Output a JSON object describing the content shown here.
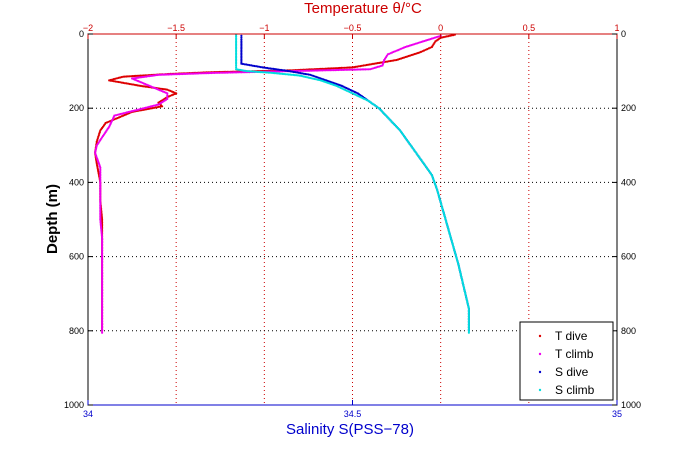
{
  "chart_data": {
    "type": "scatter",
    "title": "Temperature θ/°C",
    "xlabel": "Salinity S(PSS−78)",
    "ylabel": "Depth (m)",
    "x_bottom": {
      "label": "Salinity S(PSS−78)",
      "lim": [
        34,
        35
      ],
      "ticks": [
        "34",
        "34.5",
        "35"
      ],
      "tick_values": [
        34,
        34.5,
        35
      ],
      "color": "#0000cc"
    },
    "x_top": {
      "label": "Temperature θ/°C",
      "lim": [
        -2,
        1
      ],
      "ticks": [
        "−2",
        "−1.5",
        "−1",
        "−0.5",
        "0",
        "0.5",
        "1"
      ],
      "tick_values": [
        -2,
        -1.5,
        -1,
        -0.5,
        0,
        0.5,
        1
      ],
      "color": "#cc0000"
    },
    "y": {
      "lim": [
        0,
        1000
      ],
      "reversed": true,
      "ticks": [
        "0",
        "200",
        "400",
        "600",
        "800",
        "1000"
      ],
      "tick_values": [
        0,
        200,
        400,
        600,
        800,
        1000
      ]
    },
    "grid": true,
    "legend_position": "bottom-right",
    "series": [
      {
        "name": "T dive",
        "axis": "temperature",
        "color": "#dd0000",
        "points": [
          [
            0.08,
            2
          ],
          [
            0.0,
            10
          ],
          [
            -0.03,
            20
          ],
          [
            -0.05,
            35
          ],
          [
            -0.12,
            50
          ],
          [
            -0.25,
            70
          ],
          [
            -0.5,
            90
          ],
          [
            -0.85,
            98
          ],
          [
            -1.3,
            103
          ],
          [
            -1.55,
            108
          ],
          [
            -1.8,
            115
          ],
          [
            -1.88,
            125
          ],
          [
            -1.7,
            140
          ],
          [
            -1.55,
            150
          ],
          [
            -1.5,
            160
          ],
          [
            -1.55,
            170
          ],
          [
            -1.6,
            185
          ],
          [
            -1.58,
            195
          ],
          [
            -1.75,
            210
          ],
          [
            -1.85,
            230
          ],
          [
            -1.9,
            240
          ],
          [
            -1.93,
            260
          ],
          [
            -1.95,
            290
          ],
          [
            -1.96,
            320
          ],
          [
            -1.95,
            350
          ],
          [
            -1.93,
            400
          ],
          [
            -1.93,
            450
          ],
          [
            -1.92,
            500
          ],
          [
            -1.92,
            550
          ],
          [
            -1.92,
            600
          ],
          [
            -1.92,
            650
          ],
          [
            -1.92,
            700
          ],
          [
            -1.92,
            750
          ],
          [
            -1.92,
            800
          ]
        ]
      },
      {
        "name": "T climb",
        "axis": "temperature",
        "color": "#ee00ee",
        "points": [
          [
            0.0,
            5
          ],
          [
            -0.1,
            20
          ],
          [
            -0.2,
            35
          ],
          [
            -0.3,
            55
          ],
          [
            -0.32,
            70
          ],
          [
            -0.33,
            85
          ],
          [
            -0.4,
            95
          ],
          [
            -0.85,
            100
          ],
          [
            -1.3,
            105
          ],
          [
            -1.6,
            110
          ],
          [
            -1.75,
            120
          ],
          [
            -1.65,
            140
          ],
          [
            -1.55,
            160
          ],
          [
            -1.55,
            175
          ],
          [
            -1.6,
            190
          ],
          [
            -1.85,
            220
          ],
          [
            -1.88,
            250
          ],
          [
            -1.95,
            300
          ],
          [
            -1.96,
            320
          ],
          [
            -1.93,
            360
          ],
          [
            -1.93,
            400
          ],
          [
            -1.93,
            450
          ],
          [
            -1.93,
            500
          ],
          [
            -1.92,
            550
          ],
          [
            -1.92,
            600
          ],
          [
            -1.92,
            650
          ],
          [
            -1.92,
            700
          ],
          [
            -1.92,
            750
          ],
          [
            -1.92,
            800
          ],
          [
            -1.92,
            805
          ]
        ]
      },
      {
        "name": "S dive",
        "axis": "salinity",
        "color": "#0000cc",
        "points": [
          [
            34.29,
            5
          ],
          [
            34.29,
            20
          ],
          [
            34.29,
            40
          ],
          [
            34.29,
            60
          ],
          [
            34.29,
            80
          ],
          [
            34.33,
            90
          ],
          [
            34.38,
            100
          ],
          [
            34.42,
            110
          ],
          [
            34.45,
            125
          ],
          [
            34.48,
            140
          ],
          [
            34.51,
            160
          ],
          [
            34.53,
            180
          ],
          [
            34.55,
            200
          ],
          [
            34.57,
            230
          ],
          [
            34.59,
            260
          ],
          [
            34.61,
            300
          ],
          [
            34.63,
            340
          ],
          [
            34.65,
            380
          ],
          [
            34.66,
            420
          ],
          [
            34.67,
            470
          ],
          [
            34.68,
            520
          ],
          [
            34.69,
            570
          ],
          [
            34.7,
            620
          ],
          [
            34.71,
            680
          ],
          [
            34.72,
            740
          ],
          [
            34.72,
            800
          ]
        ]
      },
      {
        "name": "S climb",
        "axis": "salinity",
        "color": "#00dddd",
        "points": [
          [
            34.28,
            2
          ],
          [
            34.28,
            20
          ],
          [
            34.28,
            40
          ],
          [
            34.28,
            60
          ],
          [
            34.28,
            80
          ],
          [
            34.28,
            95
          ],
          [
            34.3,
            100
          ],
          [
            34.35,
            105
          ],
          [
            34.4,
            112
          ],
          [
            34.44,
            125
          ],
          [
            34.47,
            140
          ],
          [
            34.5,
            160
          ],
          [
            34.53,
            180
          ],
          [
            34.55,
            200
          ],
          [
            34.57,
            230
          ],
          [
            34.59,
            260
          ],
          [
            34.61,
            300
          ],
          [
            34.63,
            340
          ],
          [
            34.65,
            380
          ],
          [
            34.66,
            420
          ],
          [
            34.67,
            470
          ],
          [
            34.68,
            520
          ],
          [
            34.69,
            570
          ],
          [
            34.7,
            620
          ],
          [
            34.71,
            680
          ],
          [
            34.72,
            740
          ],
          [
            34.72,
            805
          ]
        ]
      }
    ]
  }
}
